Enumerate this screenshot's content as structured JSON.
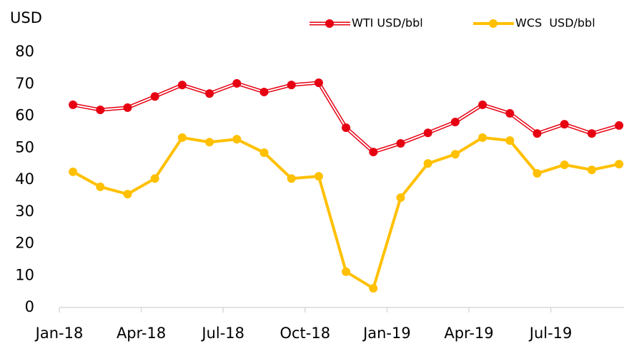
{
  "chart_data": {
    "type": "line",
    "y_label": "USD",
    "categories": [
      "Jan-18",
      null,
      null,
      "Apr-18",
      null,
      null,
      "Jul-18",
      null,
      null,
      "Oct-18",
      null,
      null,
      "Jan-19",
      null,
      null,
      "Apr-19",
      null,
      null,
      "Jul-19",
      null,
      null
    ],
    "series": [
      {
        "name": "WTI USD/bbl",
        "color": "#e60012",
        "values": [
          63.5,
          61.9,
          62.6,
          66.1,
          69.7,
          67.0,
          70.2,
          67.5,
          69.7,
          70.4,
          56.3,
          48.7,
          51.4,
          54.7,
          58.1,
          63.5,
          60.8,
          54.5,
          57.4,
          54.5,
          57.0
        ]
      },
      {
        "name": "WCS  USD/bbl",
        "color": "#ffc000",
        "values": [
          42.5,
          37.8,
          35.5,
          40.4,
          53.2,
          51.8,
          52.7,
          48.5,
          40.4,
          41.1,
          11.2,
          6.0,
          34.4,
          45.1,
          48.0,
          53.2,
          52.3,
          42.0,
          44.7,
          43.1,
          44.9
        ]
      }
    ],
    "ylim": [
      0,
      80
    ],
    "yticks": [
      0,
      10,
      20,
      30,
      40,
      50,
      60,
      70,
      80
    ],
    "grid": false,
    "legend": "top-right"
  }
}
